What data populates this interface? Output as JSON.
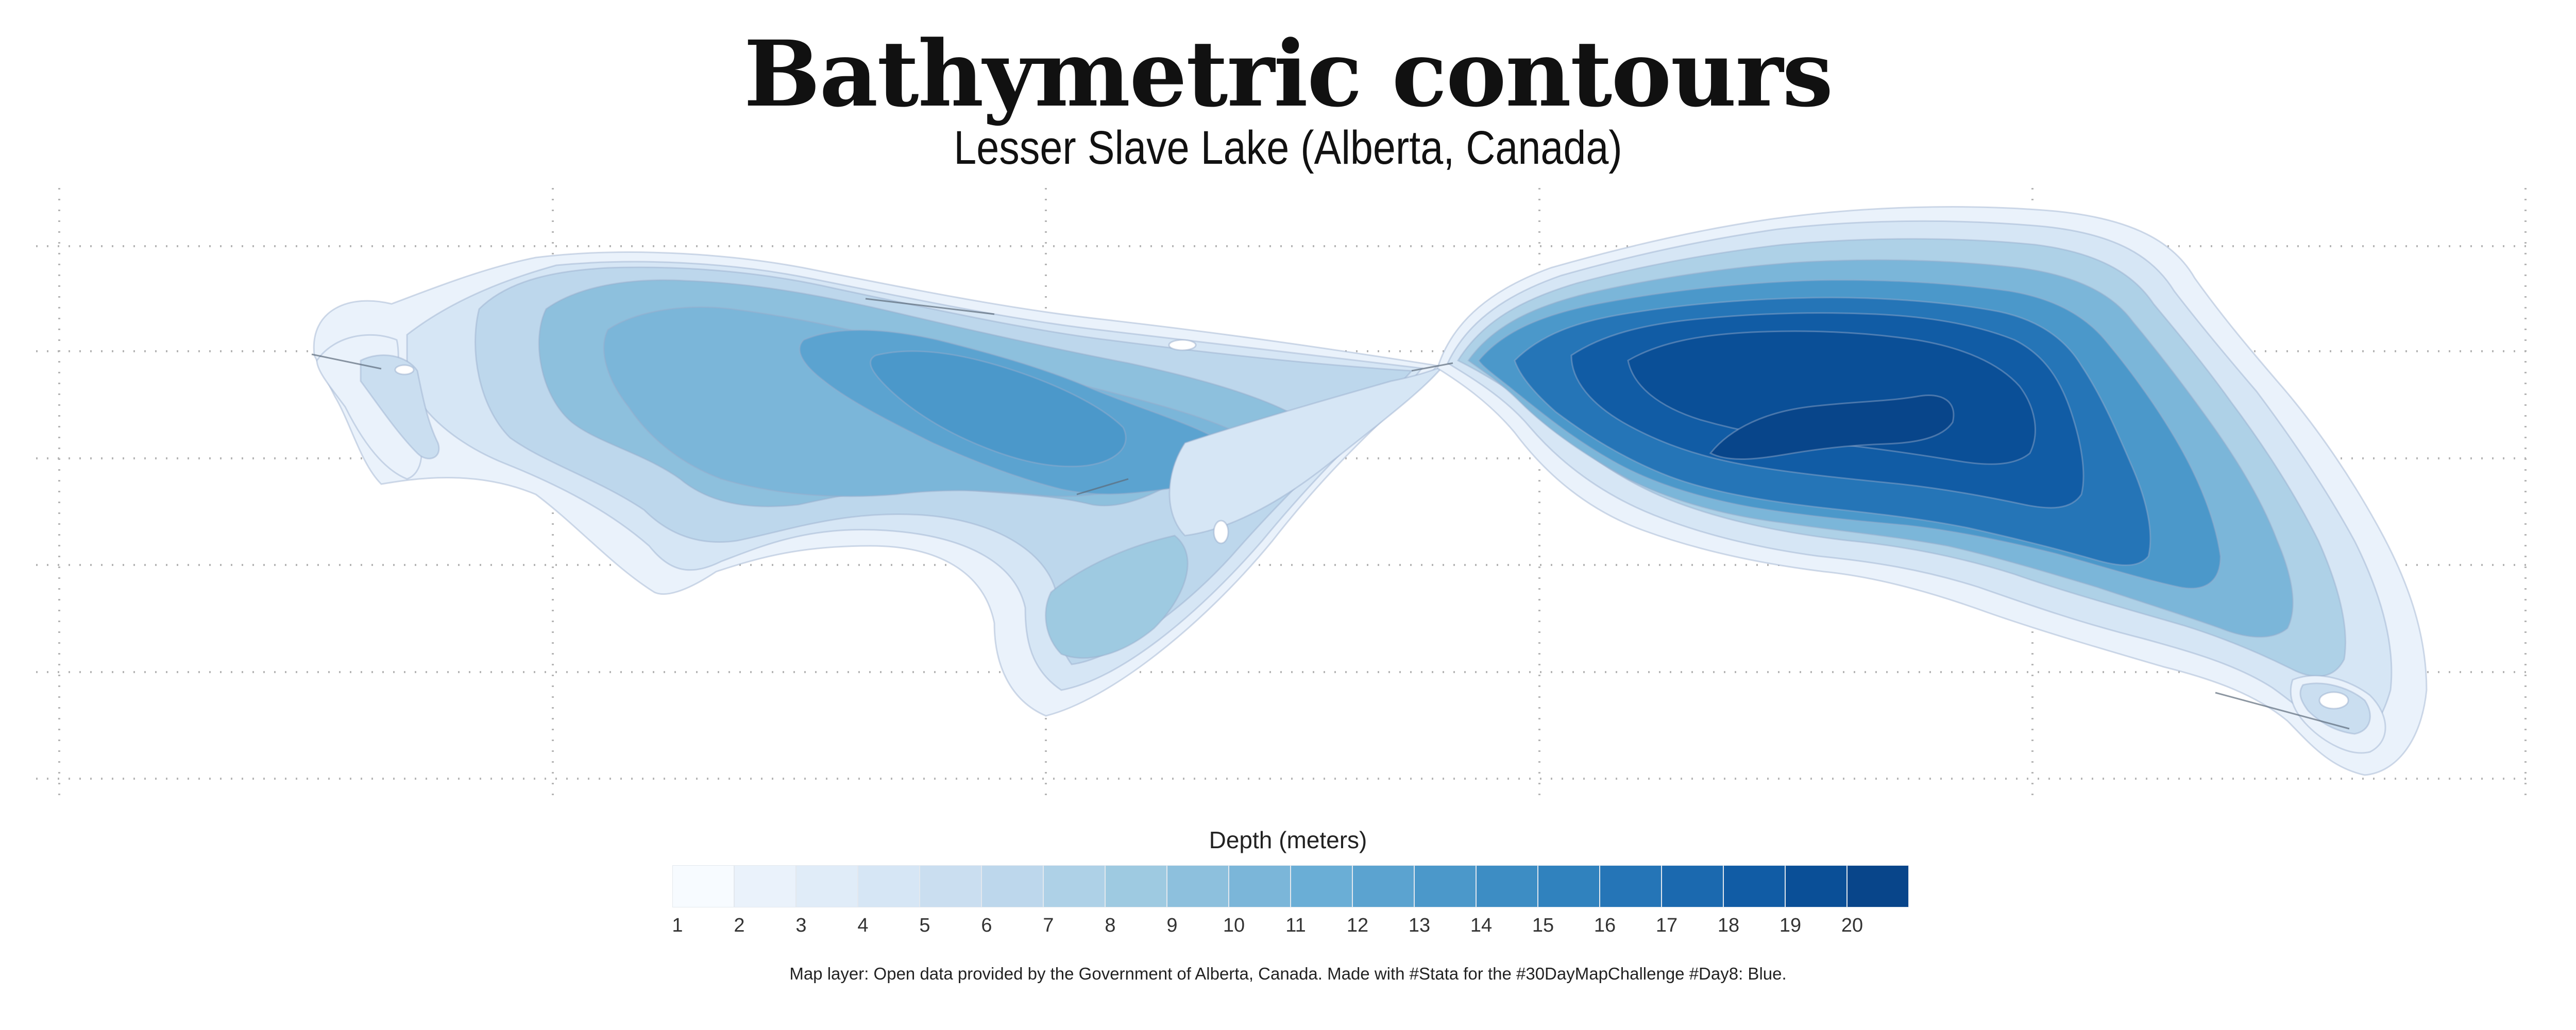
{
  "title": "Bathymetric contours",
  "subtitle": "Lesser Slave Lake (Alberta, Canada)",
  "legend": {
    "title": "Depth (meters)",
    "ticks": [
      "1",
      "2",
      "3",
      "4",
      "5",
      "6",
      "7",
      "8",
      "9",
      "10",
      "11",
      "12",
      "13",
      "14",
      "15",
      "16",
      "17",
      "18",
      "19",
      "20"
    ],
    "colors": [
      "#f7fbff",
      "#eaf2fb",
      "#e0ecf8",
      "#d6e6f5",
      "#cadef0",
      "#bdd7ec",
      "#aed1e7",
      "#9ecae1",
      "#8dc0dd",
      "#7bb6d9",
      "#6aaed6",
      "#5ba3d0",
      "#4b98ca",
      "#3d8dc4",
      "#3082be",
      "#2575b7",
      "#1b69af",
      "#115ca5",
      "#0a4f97",
      "#08458a"
    ]
  },
  "caption": "Map layer: Open data provided by the Government of Alberta, Canada. Made with #Stata for the #30DayMapChallenge #Day8: Blue."
}
